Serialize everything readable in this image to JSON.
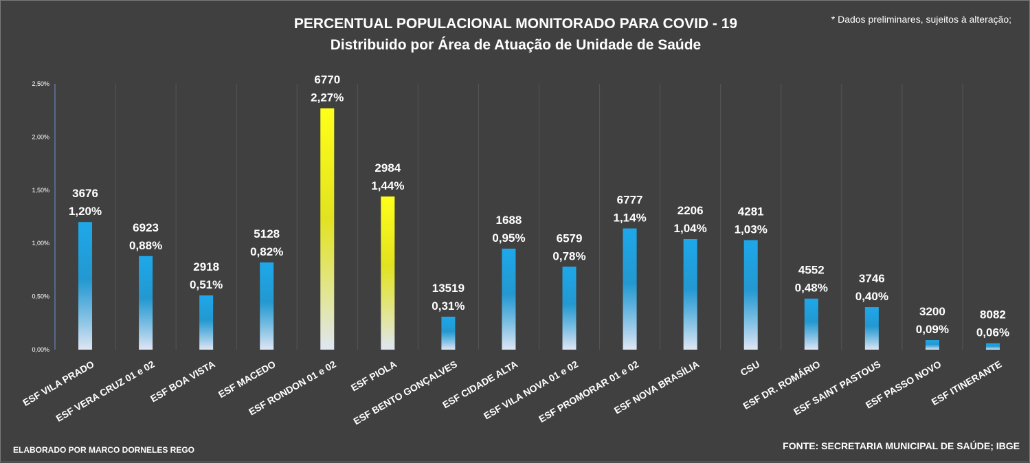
{
  "header": {
    "title": "PERCENTUAL POPULACIONAL MONITORADO PARA COVID - 19",
    "subtitle": "Distribuido por Área de Atuação de Unidade de Saúde",
    "note": "* Dados preliminares, sujeitos à alteração;"
  },
  "footer": {
    "author": "ELABORADO POR MARCO DORNELES REGO",
    "source": "FONTE: SECRETARIA MUNICIPAL DE SAÚDE; IBGE"
  },
  "colors": {
    "background": "#404040",
    "grid": "#565656",
    "bar_top_blue": "#1ea8ea",
    "bar_top_yellow": "#ffff1a",
    "bar_bottom": "#dfe6f4",
    "text": "#ffffff"
  },
  "chart_data": {
    "type": "bar",
    "ylim": [
      0,
      2.5
    ],
    "yticks": [
      0,
      0.5,
      1.0,
      1.5,
      2.0,
      2.5
    ],
    "ytick_labels": [
      "0,00%",
      "0,50%",
      "1,00%",
      "1,50%",
      "2,00%",
      "2,50%"
    ],
    "grid": "vertical",
    "categories": [
      "ESF VILA PRADO",
      "ESF VERA CRUZ 01 e 02",
      "ESF BOA VISTA",
      "ESF MACEDO",
      "ESF RONDON 01 e 02",
      "ESF PIOLA",
      "ESF BENTO GONÇALVES",
      "ESF CIDADE ALTA",
      "ESF VILA NOVA 01 e 02",
      "ESF PROMORAR 01 e 02",
      "ESF NOVA BRASÍLIA",
      "CSU",
      "ESF DR. ROMÁRIO",
      "ESF SAINT PASTOUS",
      "ESF PASSO NOVO",
      "ESF ITINERANTE"
    ],
    "values": [
      1.2,
      0.88,
      0.51,
      0.82,
      2.27,
      1.44,
      0.31,
      0.95,
      0.78,
      1.14,
      1.04,
      1.03,
      0.48,
      0.4,
      0.09,
      0.06
    ],
    "value_labels": [
      "1,20%",
      "0,88%",
      "0,51%",
      "0,82%",
      "2,27%",
      "1,44%",
      "0,31%",
      "0,95%",
      "0,78%",
      "1,14%",
      "1,04%",
      "1,03%",
      "0,48%",
      "0,40%",
      "0,09%",
      "0,06%"
    ],
    "counts": [
      "3676",
      "6923",
      "2918",
      "5128",
      "6770",
      "2984",
      "13519",
      "1688",
      "6579",
      "6777",
      "2206",
      "4281",
      "4552",
      "3746",
      "3200",
      "8082"
    ],
    "highlight": [
      "ESF RONDON 01 e 02",
      "ESF PIOLA"
    ]
  }
}
